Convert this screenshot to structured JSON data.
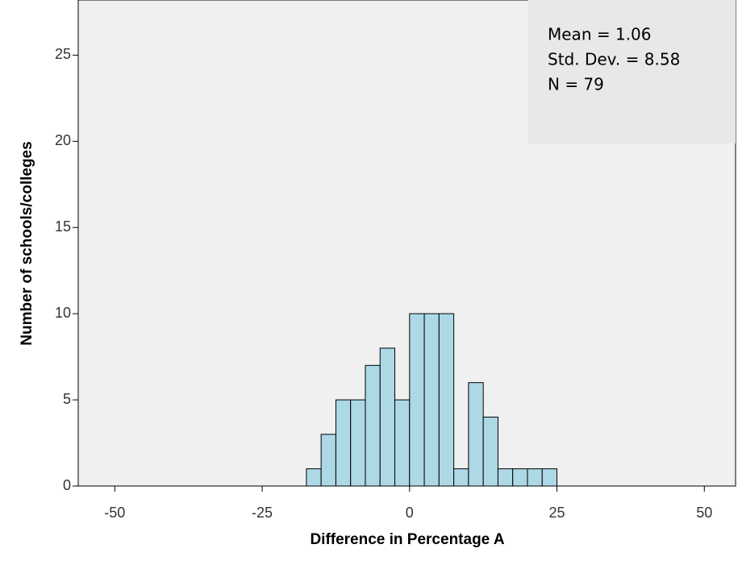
{
  "chart_data": {
    "type": "histogram",
    "x_label": "Difference in Percentage A",
    "y_label": "Number of schools/colleges",
    "bins": [
      -17.5,
      -15,
      -12.5,
      -10,
      -7.5,
      -5,
      -2.5,
      0,
      2.5,
      5,
      7.5,
      10,
      12.5,
      15,
      17.5,
      20,
      22.5,
      25
    ],
    "values": [
      1,
      3,
      5,
      5,
      7,
      8,
      5,
      10,
      10,
      10,
      1,
      6,
      4,
      1,
      1,
      1,
      1
    ],
    "color": "#add8e6",
    "xlim": [
      -56.2,
      55.3
    ],
    "ylim": [
      0,
      28.2
    ],
    "xticks": [
      -50,
      -25,
      0,
      25,
      50
    ],
    "yticks": [
      0,
      5,
      10,
      15,
      20,
      25
    ],
    "annotations": [
      "Mean = 1.06",
      "Std. Dev. = 8.58",
      "N = 79"
    ]
  }
}
